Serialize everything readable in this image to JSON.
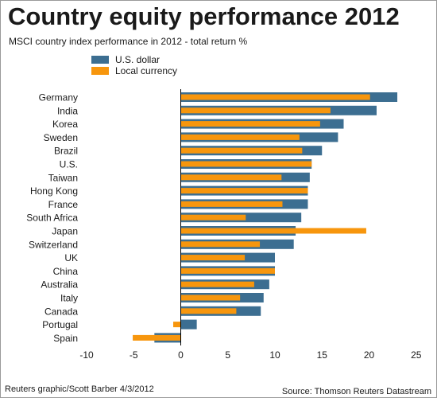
{
  "title": "Country equity performance 2012",
  "subtitle": "MSCI country index performance in 2012 - total return %",
  "footer_left": "Reuters graphic/Scott Barber 4/3/2012",
  "footer_right": "Source: Thomson Reuters Datastream",
  "colors": {
    "usd": "#3c6e91",
    "local": "#f7960d",
    "axis": "#000000",
    "text": "#1a1a1a"
  },
  "chart_data": {
    "type": "bar",
    "orientation": "horizontal",
    "categories": [
      "Germany",
      "India",
      "Korea",
      "Sweden",
      "Brazil",
      "U.S.",
      "Taiwan",
      "Hong Kong",
      "France",
      "South Africa",
      "Japan",
      "Switzerland",
      "UK",
      "China",
      "Australia",
      "Italy",
      "Canada",
      "Portugal",
      "Spain"
    ],
    "series": [
      {
        "name": "U.S. dollar",
        "values": [
          23.0,
          20.8,
          17.3,
          16.7,
          15.0,
          13.9,
          13.7,
          13.5,
          13.5,
          12.8,
          12.2,
          12.0,
          10.0,
          10.0,
          9.4,
          8.8,
          8.5,
          1.7,
          -2.8
        ]
      },
      {
        "name": "Local currency",
        "values": [
          20.1,
          15.9,
          14.8,
          12.6,
          12.9,
          13.9,
          10.7,
          13.5,
          10.8,
          6.9,
          19.7,
          8.4,
          6.8,
          10.0,
          7.8,
          6.3,
          5.9,
          -0.8,
          -5.1
        ]
      }
    ],
    "xticks": [
      -10,
      -5,
      0,
      5,
      10,
      15,
      20,
      25
    ],
    "xlim": [
      -10,
      25
    ],
    "legend": "top-left",
    "grid": false
  }
}
